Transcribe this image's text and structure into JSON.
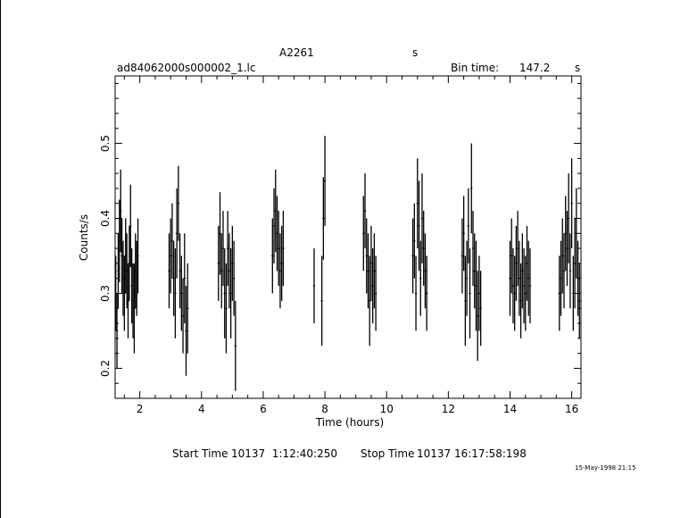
{
  "header": {
    "object": "A2261",
    "object_unit": "s",
    "file_name": "ad84062000s000002_1.lc",
    "bin_time_label": "Bin time:",
    "bin_time_value": "147.2",
    "bin_time_unit": "s"
  },
  "footer": {
    "start_label": "Start Time",
    "start_value": "10137  1:12:40:250",
    "stop_label": "Stop Time",
    "stop_value": "10137 16:17:58:198",
    "date_stamp": "15-May-1998 21:15"
  },
  "chart_data": {
    "type": "scatter",
    "style": "error bars",
    "xlabel": "Time (hours)",
    "ylabel": "Counts/s",
    "xlim": [
      1.2,
      16.3
    ],
    "ylim": [
      0.16,
      0.59
    ],
    "x_ticks": [
      2,
      4,
      6,
      8,
      10,
      12,
      14,
      16
    ],
    "y_ticks": [
      0.2,
      0.3,
      0.4,
      0.5
    ],
    "y_tick_labels": [
      "0.2",
      "0.3",
      "0.4",
      "0.5"
    ],
    "grid": false,
    "series": [
      {
        "points": [
          {
            "x": 1.22,
            "y": 0.3,
            "err": 0.05
          },
          {
            "x": 1.26,
            "y": 0.25,
            "err": 0.05
          },
          {
            "x": 1.3,
            "y": 0.33,
            "err": 0.05
          },
          {
            "x": 1.34,
            "y": 0.37,
            "err": 0.055
          },
          {
            "x": 1.38,
            "y": 0.41,
            "err": 0.055
          },
          {
            "x": 1.42,
            "y": 0.35,
            "err": 0.05
          },
          {
            "x": 1.46,
            "y": 0.32,
            "err": 0.05
          },
          {
            "x": 1.5,
            "y": 0.3,
            "err": 0.05
          },
          {
            "x": 1.54,
            "y": 0.35,
            "err": 0.05
          },
          {
            "x": 1.58,
            "y": 0.33,
            "err": 0.05
          },
          {
            "x": 1.62,
            "y": 0.29,
            "err": 0.05
          },
          {
            "x": 1.66,
            "y": 0.34,
            "err": 0.05
          },
          {
            "x": 1.7,
            "y": 0.39,
            "err": 0.055
          },
          {
            "x": 1.74,
            "y": 0.31,
            "err": 0.05
          },
          {
            "x": 1.78,
            "y": 0.29,
            "err": 0.05
          },
          {
            "x": 1.82,
            "y": 0.28,
            "err": 0.06
          },
          {
            "x": 1.86,
            "y": 0.33,
            "err": 0.05
          },
          {
            "x": 1.9,
            "y": 0.32,
            "err": 0.05
          },
          {
            "x": 1.94,
            "y": 0.35,
            "err": 0.05
          },
          {
            "x": 2.95,
            "y": 0.33,
            "err": 0.05
          },
          {
            "x": 3.0,
            "y": 0.35,
            "err": 0.05
          },
          {
            "x": 3.05,
            "y": 0.37,
            "err": 0.05
          },
          {
            "x": 3.1,
            "y": 0.32,
            "err": 0.05
          },
          {
            "x": 3.15,
            "y": 0.3,
            "err": 0.06
          },
          {
            "x": 3.2,
            "y": 0.38,
            "err": 0.06
          },
          {
            "x": 3.25,
            "y": 0.42,
            "err": 0.05
          },
          {
            "x": 3.3,
            "y": 0.33,
            "err": 0.05
          },
          {
            "x": 3.35,
            "y": 0.3,
            "err": 0.05
          },
          {
            "x": 3.4,
            "y": 0.27,
            "err": 0.05
          },
          {
            "x": 3.45,
            "y": 0.32,
            "err": 0.06
          },
          {
            "x": 3.5,
            "y": 0.25,
            "err": 0.06
          },
          {
            "x": 3.55,
            "y": 0.28,
            "err": 0.06
          },
          {
            "x": 4.55,
            "y": 0.34,
            "err": 0.05
          },
          {
            "x": 4.6,
            "y": 0.38,
            "err": 0.055
          },
          {
            "x": 4.65,
            "y": 0.33,
            "err": 0.05
          },
          {
            "x": 4.7,
            "y": 0.36,
            "err": 0.05
          },
          {
            "x": 4.75,
            "y": 0.3,
            "err": 0.06
          },
          {
            "x": 4.8,
            "y": 0.28,
            "err": 0.06
          },
          {
            "x": 4.85,
            "y": 0.36,
            "err": 0.05
          },
          {
            "x": 4.9,
            "y": 0.33,
            "err": 0.05
          },
          {
            "x": 4.95,
            "y": 0.3,
            "err": 0.06
          },
          {
            "x": 5.0,
            "y": 0.34,
            "err": 0.05
          },
          {
            "x": 5.05,
            "y": 0.32,
            "err": 0.05
          },
          {
            "x": 5.1,
            "y": 0.23,
            "err": 0.06
          },
          {
            "x": 6.3,
            "y": 0.35,
            "err": 0.05
          },
          {
            "x": 6.35,
            "y": 0.39,
            "err": 0.05
          },
          {
            "x": 6.4,
            "y": 0.41,
            "err": 0.055
          },
          {
            "x": 6.45,
            "y": 0.38,
            "err": 0.05
          },
          {
            "x": 6.5,
            "y": 0.36,
            "err": 0.05
          },
          {
            "x": 6.55,
            "y": 0.33,
            "err": 0.05
          },
          {
            "x": 6.6,
            "y": 0.34,
            "err": 0.05
          },
          {
            "x": 6.65,
            "y": 0.36,
            "err": 0.05
          },
          {
            "x": 7.65,
            "y": 0.31,
            "err": 0.05
          },
          {
            "x": 7.9,
            "y": 0.29,
            "err": 0.06
          },
          {
            "x": 7.95,
            "y": 0.4,
            "err": 0.055
          },
          {
            "x": 8.0,
            "y": 0.45,
            "err": 0.06
          },
          {
            "x": 9.25,
            "y": 0.38,
            "err": 0.05
          },
          {
            "x": 9.3,
            "y": 0.41,
            "err": 0.05
          },
          {
            "x": 9.35,
            "y": 0.35,
            "err": 0.05
          },
          {
            "x": 9.4,
            "y": 0.33,
            "err": 0.05
          },
          {
            "x": 9.45,
            "y": 0.29,
            "err": 0.06
          },
          {
            "x": 9.5,
            "y": 0.34,
            "err": 0.05
          },
          {
            "x": 9.55,
            "y": 0.31,
            "err": 0.05
          },
          {
            "x": 9.6,
            "y": 0.33,
            "err": 0.05
          },
          {
            "x": 9.65,
            "y": 0.3,
            "err": 0.05
          },
          {
            "x": 10.85,
            "y": 0.35,
            "err": 0.05
          },
          {
            "x": 10.9,
            "y": 0.37,
            "err": 0.05
          },
          {
            "x": 10.95,
            "y": 0.3,
            "err": 0.05
          },
          {
            "x": 11.0,
            "y": 0.42,
            "err": 0.06
          },
          {
            "x": 11.05,
            "y": 0.39,
            "err": 0.06
          },
          {
            "x": 11.1,
            "y": 0.32,
            "err": 0.05
          },
          {
            "x": 11.15,
            "y": 0.4,
            "err": 0.06
          },
          {
            "x": 11.2,
            "y": 0.36,
            "err": 0.05
          },
          {
            "x": 11.25,
            "y": 0.33,
            "err": 0.05
          },
          {
            "x": 11.3,
            "y": 0.3,
            "err": 0.05
          },
          {
            "x": 12.45,
            "y": 0.35,
            "err": 0.05
          },
          {
            "x": 12.5,
            "y": 0.38,
            "err": 0.05
          },
          {
            "x": 12.55,
            "y": 0.29,
            "err": 0.06
          },
          {
            "x": 12.6,
            "y": 0.32,
            "err": 0.05
          },
          {
            "x": 12.65,
            "y": 0.39,
            "err": 0.05
          },
          {
            "x": 12.7,
            "y": 0.3,
            "err": 0.06
          },
          {
            "x": 12.75,
            "y": 0.44,
            "err": 0.06
          },
          {
            "x": 12.8,
            "y": 0.36,
            "err": 0.05
          },
          {
            "x": 12.85,
            "y": 0.33,
            "err": 0.05
          },
          {
            "x": 12.9,
            "y": 0.31,
            "err": 0.06
          },
          {
            "x": 12.95,
            "y": 0.27,
            "err": 0.06
          },
          {
            "x": 13.0,
            "y": 0.3,
            "err": 0.05
          },
          {
            "x": 13.05,
            "y": 0.28,
            "err": 0.05
          },
          {
            "x": 14.0,
            "y": 0.32,
            "err": 0.05
          },
          {
            "x": 14.05,
            "y": 0.35,
            "err": 0.05
          },
          {
            "x": 14.1,
            "y": 0.31,
            "err": 0.05
          },
          {
            "x": 14.15,
            "y": 0.3,
            "err": 0.05
          },
          {
            "x": 14.2,
            "y": 0.34,
            "err": 0.05
          },
          {
            "x": 14.25,
            "y": 0.36,
            "err": 0.05
          },
          {
            "x": 14.3,
            "y": 0.32,
            "err": 0.05
          },
          {
            "x": 14.35,
            "y": 0.29,
            "err": 0.05
          },
          {
            "x": 14.4,
            "y": 0.33,
            "err": 0.05
          },
          {
            "x": 14.45,
            "y": 0.31,
            "err": 0.05
          },
          {
            "x": 14.5,
            "y": 0.3,
            "err": 0.05
          },
          {
            "x": 14.55,
            "y": 0.34,
            "err": 0.05
          },
          {
            "x": 14.6,
            "y": 0.32,
            "err": 0.05
          },
          {
            "x": 14.65,
            "y": 0.31,
            "err": 0.05
          },
          {
            "x": 15.6,
            "y": 0.3,
            "err": 0.05
          },
          {
            "x": 15.65,
            "y": 0.32,
            "err": 0.05
          },
          {
            "x": 15.7,
            "y": 0.35,
            "err": 0.05
          },
          {
            "x": 15.75,
            "y": 0.33,
            "err": 0.05
          },
          {
            "x": 15.8,
            "y": 0.38,
            "err": 0.05
          },
          {
            "x": 15.85,
            "y": 0.36,
            "err": 0.05
          },
          {
            "x": 15.9,
            "y": 0.4,
            "err": 0.06
          },
          {
            "x": 15.95,
            "y": 0.33,
            "err": 0.05
          },
          {
            "x": 16.0,
            "y": 0.42,
            "err": 0.06
          },
          {
            "x": 16.05,
            "y": 0.3,
            "err": 0.05
          },
          {
            "x": 16.1,
            "y": 0.34,
            "err": 0.06
          },
          {
            "x": 16.15,
            "y": 0.38,
            "err": 0.06
          },
          {
            "x": 16.2,
            "y": 0.32,
            "err": 0.05
          },
          {
            "x": 16.25,
            "y": 0.29,
            "err": 0.05
          }
        ]
      }
    ]
  }
}
